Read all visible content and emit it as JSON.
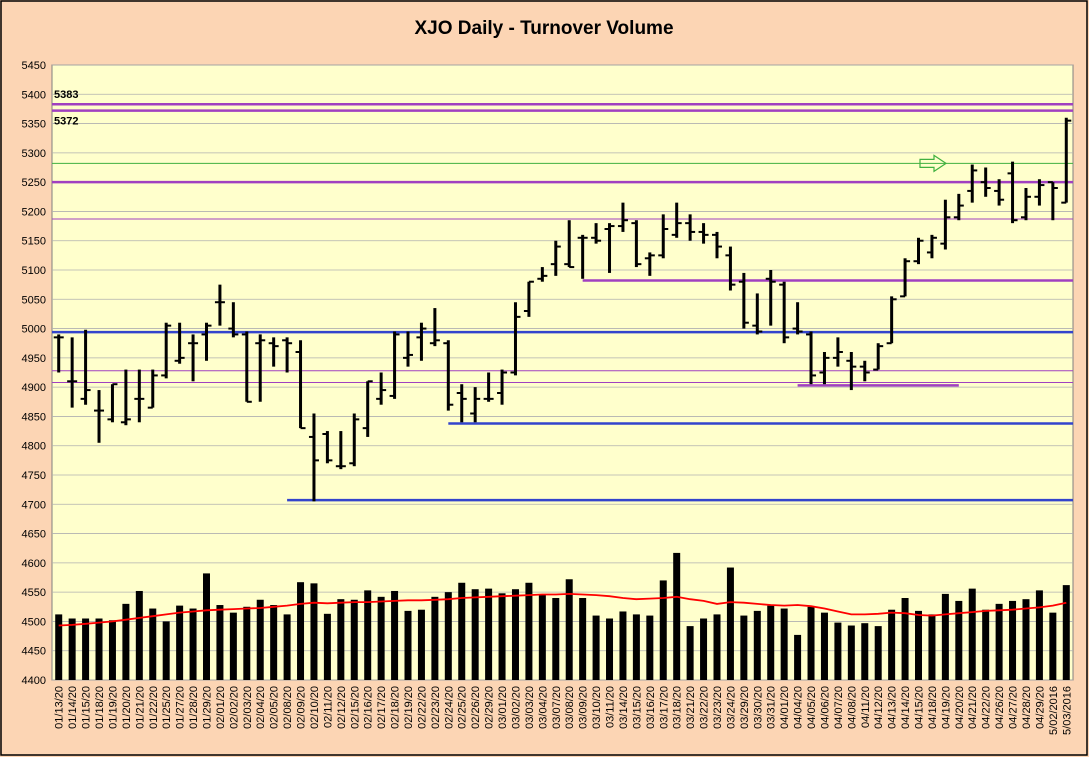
{
  "chart_data": {
    "type": "ohlc",
    "title": "XJO Daily - Turnover Volume",
    "categories": [
      "01/13/20",
      "01/14/20",
      "01/15/20",
      "01/18/20",
      "01/19/20",
      "01/20/20",
      "01/21/20",
      "01/22/20",
      "01/25/20",
      "01/27/20",
      "01/28/20",
      "01/29/20",
      "02/01/20",
      "02/02/20",
      "02/03/20",
      "02/04/20",
      "02/05/20",
      "02/08/20",
      "02/09/20",
      "02/10/20",
      "02/11/20",
      "02/12/20",
      "02/15/20",
      "02/16/20",
      "02/17/20",
      "02/18/20",
      "02/19/20",
      "02/22/20",
      "02/23/20",
      "02/24/20",
      "02/25/20",
      "02/26/20",
      "02/29/20",
      "03/01/20",
      "03/02/20",
      "03/03/20",
      "03/04/20",
      "03/07/20",
      "03/08/20",
      "03/09/20",
      "03/10/20",
      "03/11/20",
      "03/14/20",
      "03/15/20",
      "03/16/20",
      "03/17/20",
      "03/18/20",
      "03/21/20",
      "03/22/20",
      "03/23/20",
      "03/24/20",
      "03/29/20",
      "03/30/20",
      "03/31/20",
      "04/01/20",
      "04/04/20",
      "04/05/20",
      "04/06/20",
      "04/07/20",
      "04/08/20",
      "04/11/20",
      "04/12/20",
      "04/13/20",
      "04/14/20",
      "04/15/20",
      "04/18/20",
      "04/19/20",
      "04/20/20",
      "04/21/20",
      "04/22/20",
      "04/26/20",
      "04/27/20",
      "04/28/20",
      "04/29/20",
      "5/02/2016",
      "5/03/2016"
    ],
    "ohlc": [
      [
        4985,
        4990,
        4925,
        4985
      ],
      [
        4910,
        4985,
        4865,
        4910
      ],
      [
        4880,
        4998,
        4870,
        4895
      ],
      [
        4860,
        4895,
        4805,
        4860
      ],
      [
        4845,
        4905,
        4840,
        4905
      ],
      [
        4840,
        4930,
        4835,
        4845
      ],
      [
        4880,
        4930,
        4840,
        4880
      ],
      [
        4865,
        4930,
        4865,
        4920
      ],
      [
        4920,
        5010,
        4915,
        5005
      ],
      [
        4945,
        5010,
        4940,
        4950
      ],
      [
        4975,
        4990,
        4910,
        4975
      ],
      [
        4990,
        5010,
        4945,
        5005
      ],
      [
        5045,
        5075,
        5005,
        5045
      ],
      [
        5000,
        5045,
        4985,
        4990
      ],
      [
        4990,
        4995,
        4875,
        4875
      ],
      [
        4975,
        4990,
        4875,
        4980
      ],
      [
        4975,
        4985,
        4935,
        4970
      ],
      [
        4980,
        4985,
        4925,
        4975
      ],
      [
        4960,
        4980,
        4830,
        4830
      ],
      [
        4815,
        4855,
        4705,
        4775
      ],
      [
        4820,
        4825,
        4770,
        4775
      ],
      [
        4765,
        4825,
        4760,
        4765
      ],
      [
        4770,
        4855,
        4765,
        4845
      ],
      [
        4830,
        4910,
        4815,
        4910
      ],
      [
        4880,
        4925,
        4870,
        4895
      ],
      [
        4885,
        4995,
        4880,
        4990
      ],
      [
        4950,
        4995,
        4935,
        4955
      ],
      [
        4985,
        5010,
        4945,
        5000
      ],
      [
        4975,
        5035,
        4970,
        4980
      ],
      [
        4975,
        4980,
        4860,
        4870
      ],
      [
        4890,
        4905,
        4840,
        4880
      ],
      [
        4855,
        4900,
        4840,
        4880
      ],
      [
        4880,
        4925,
        4875,
        4880
      ],
      [
        4890,
        4930,
        4870,
        4925
      ],
      [
        4925,
        5045,
        4920,
        5020
      ],
      [
        5030,
        5080,
        5020,
        5080
      ],
      [
        5085,
        5105,
        5080,
        5090
      ],
      [
        5110,
        5150,
        5090,
        5140
      ],
      [
        5110,
        5185,
        5105,
        5105
      ],
      [
        5155,
        5160,
        5085,
        5155
      ],
      [
        5155,
        5180,
        5145,
        5150
      ],
      [
        5170,
        5180,
        5095,
        5175
      ],
      [
        5175,
        5215,
        5165,
        5185
      ],
      [
        5180,
        5185,
        5105,
        5110
      ],
      [
        5120,
        5130,
        5090,
        5125
      ],
      [
        5125,
        5195,
        5120,
        5170
      ],
      [
        5160,
        5215,
        5155,
        5180
      ],
      [
        5180,
        5195,
        5150,
        5165
      ],
      [
        5165,
        5180,
        5145,
        5160
      ],
      [
        5160,
        5165,
        5120,
        5140
      ],
      [
        5125,
        5140,
        5065,
        5075
      ],
      [
        5080,
        5095,
        5000,
        5010
      ],
      [
        5005,
        5060,
        4990,
        4995
      ],
      [
        5085,
        5100,
        5005,
        5080
      ],
      [
        5075,
        5080,
        4975,
        4985
      ],
      [
        5000,
        5045,
        4990,
        4995
      ],
      [
        4990,
        4995,
        4905,
        4920
      ],
      [
        4925,
        4960,
        4905,
        4950
      ],
      [
        4950,
        4985,
        4935,
        4960
      ],
      [
        4945,
        4960,
        4895,
        4935
      ],
      [
        4935,
        4945,
        4910,
        4925
      ],
      [
        4930,
        4975,
        4930,
        4970
      ],
      [
        4975,
        5055,
        4975,
        5050
      ],
      [
        5055,
        5120,
        5055,
        5115
      ],
      [
        5115,
        5155,
        5110,
        5150
      ],
      [
        5130,
        5160,
        5120,
        5155
      ],
      [
        5145,
        5220,
        5135,
        5190
      ],
      [
        5190,
        5230,
        5185,
        5210
      ],
      [
        5235,
        5280,
        5215,
        5270
      ],
      [
        5250,
        5275,
        5225,
        5240
      ],
      [
        5235,
        5255,
        5210,
        5220
      ],
      [
        5265,
        5285,
        5180,
        5185
      ],
      [
        5190,
        5240,
        5185,
        5225
      ],
      [
        5225,
        5255,
        5210,
        5245
      ],
      [
        5250,
        5250,
        5185,
        5240
      ],
      [
        5215,
        5360,
        5215,
        5355
      ]
    ],
    "ohlc_color": "#000000",
    "volume": {
      "color": "#000000",
      "values": [
        4512,
        4505,
        4505,
        4505,
        4502,
        4530,
        4552,
        4522,
        4500,
        4527,
        4522,
        4582,
        4528,
        4515,
        4525,
        4537,
        4528,
        4512,
        4567,
        4565,
        4513,
        4538,
        4537,
        4553,
        4542,
        4552,
        4518,
        4520,
        4542,
        4550,
        4566,
        4555,
        4556,
        4548,
        4555,
        4566,
        4546,
        4540,
        4572,
        4540,
        4510,
        4505,
        4517,
        4512,
        4510,
        4570,
        4617,
        4492,
        4505,
        4512,
        4592,
        4510,
        4518,
        4527,
        4522,
        4477,
        4525,
        4515,
        4498,
        4493,
        4497,
        4492,
        4520,
        4540,
        4518,
        4512,
        4547,
        4535,
        4556,
        4520,
        4530,
        4535,
        4538,
        4553,
        4515,
        4562
      ]
    },
    "moving_average": {
      "color": "#ff0000",
      "values": [
        4493,
        4494,
        4496,
        4498,
        4500,
        4503,
        4506,
        4509,
        4512,
        4515,
        4517,
        4519,
        4520,
        4521,
        4522,
        4523,
        4525,
        4527,
        4530,
        4532,
        4531,
        4532,
        4533,
        4533,
        4534,
        4535,
        4536,
        4536,
        4537,
        4538,
        4540,
        4541,
        4542,
        4543,
        4544,
        4545,
        4546,
        4546,
        4547,
        4546,
        4545,
        4543,
        4540,
        4538,
        4539,
        4540,
        4542,
        4538,
        4535,
        4530,
        4533,
        4532,
        4530,
        4528,
        4527,
        4528,
        4526,
        4522,
        4517,
        4512,
        4512,
        4513,
        4515,
        4514,
        4511,
        4510,
        4512,
        4514,
        4516,
        4518,
        4519,
        4520,
        4522,
        4524,
        4527,
        4532
      ]
    },
    "levels": [
      {
        "value": 5383,
        "color": "#a040c0",
        "weight": "thick",
        "labeled": true
      },
      {
        "value": 5372,
        "color": "#a040c0",
        "weight": "thick",
        "labeled": true
      },
      {
        "value": 5282,
        "color": "#40b040",
        "weight": "thin"
      },
      {
        "value": 5250,
        "color": "#a040c0",
        "weight": "thick"
      },
      {
        "value": 5187,
        "color": "#a040c0",
        "weight": "thin"
      },
      {
        "value": 5082,
        "color": "#a040c0",
        "weight": "thick",
        "start": "03/09/20"
      },
      {
        "value": 4994,
        "color": "#3344cc",
        "weight": "thick"
      },
      {
        "value": 4928,
        "color": "#a040c0",
        "weight": "thin"
      },
      {
        "value": 4908,
        "color": "#a040c0",
        "weight": "thin"
      },
      {
        "value": 4903,
        "color": "#a040c0",
        "weight": "thick",
        "start": "04/04/20",
        "end": "04/20/20"
      },
      {
        "value": 4838,
        "color": "#3344cc",
        "weight": "thick",
        "start": "02/24/20"
      },
      {
        "value": 4707,
        "color": "#3344cc",
        "weight": "thick",
        "start": "02/08/20"
      }
    ],
    "ylim": [
      4400,
      5450
    ],
    "yticks": [
      4400,
      4450,
      4500,
      4550,
      4600,
      4650,
      4700,
      4750,
      4800,
      4850,
      4900,
      4950,
      5000,
      5050,
      5100,
      5150,
      5200,
      5250,
      5300,
      5350,
      5400,
      5450
    ],
    "grid": true,
    "plot_color": "#ffffcc",
    "grid_color": "#b0b0b0"
  }
}
